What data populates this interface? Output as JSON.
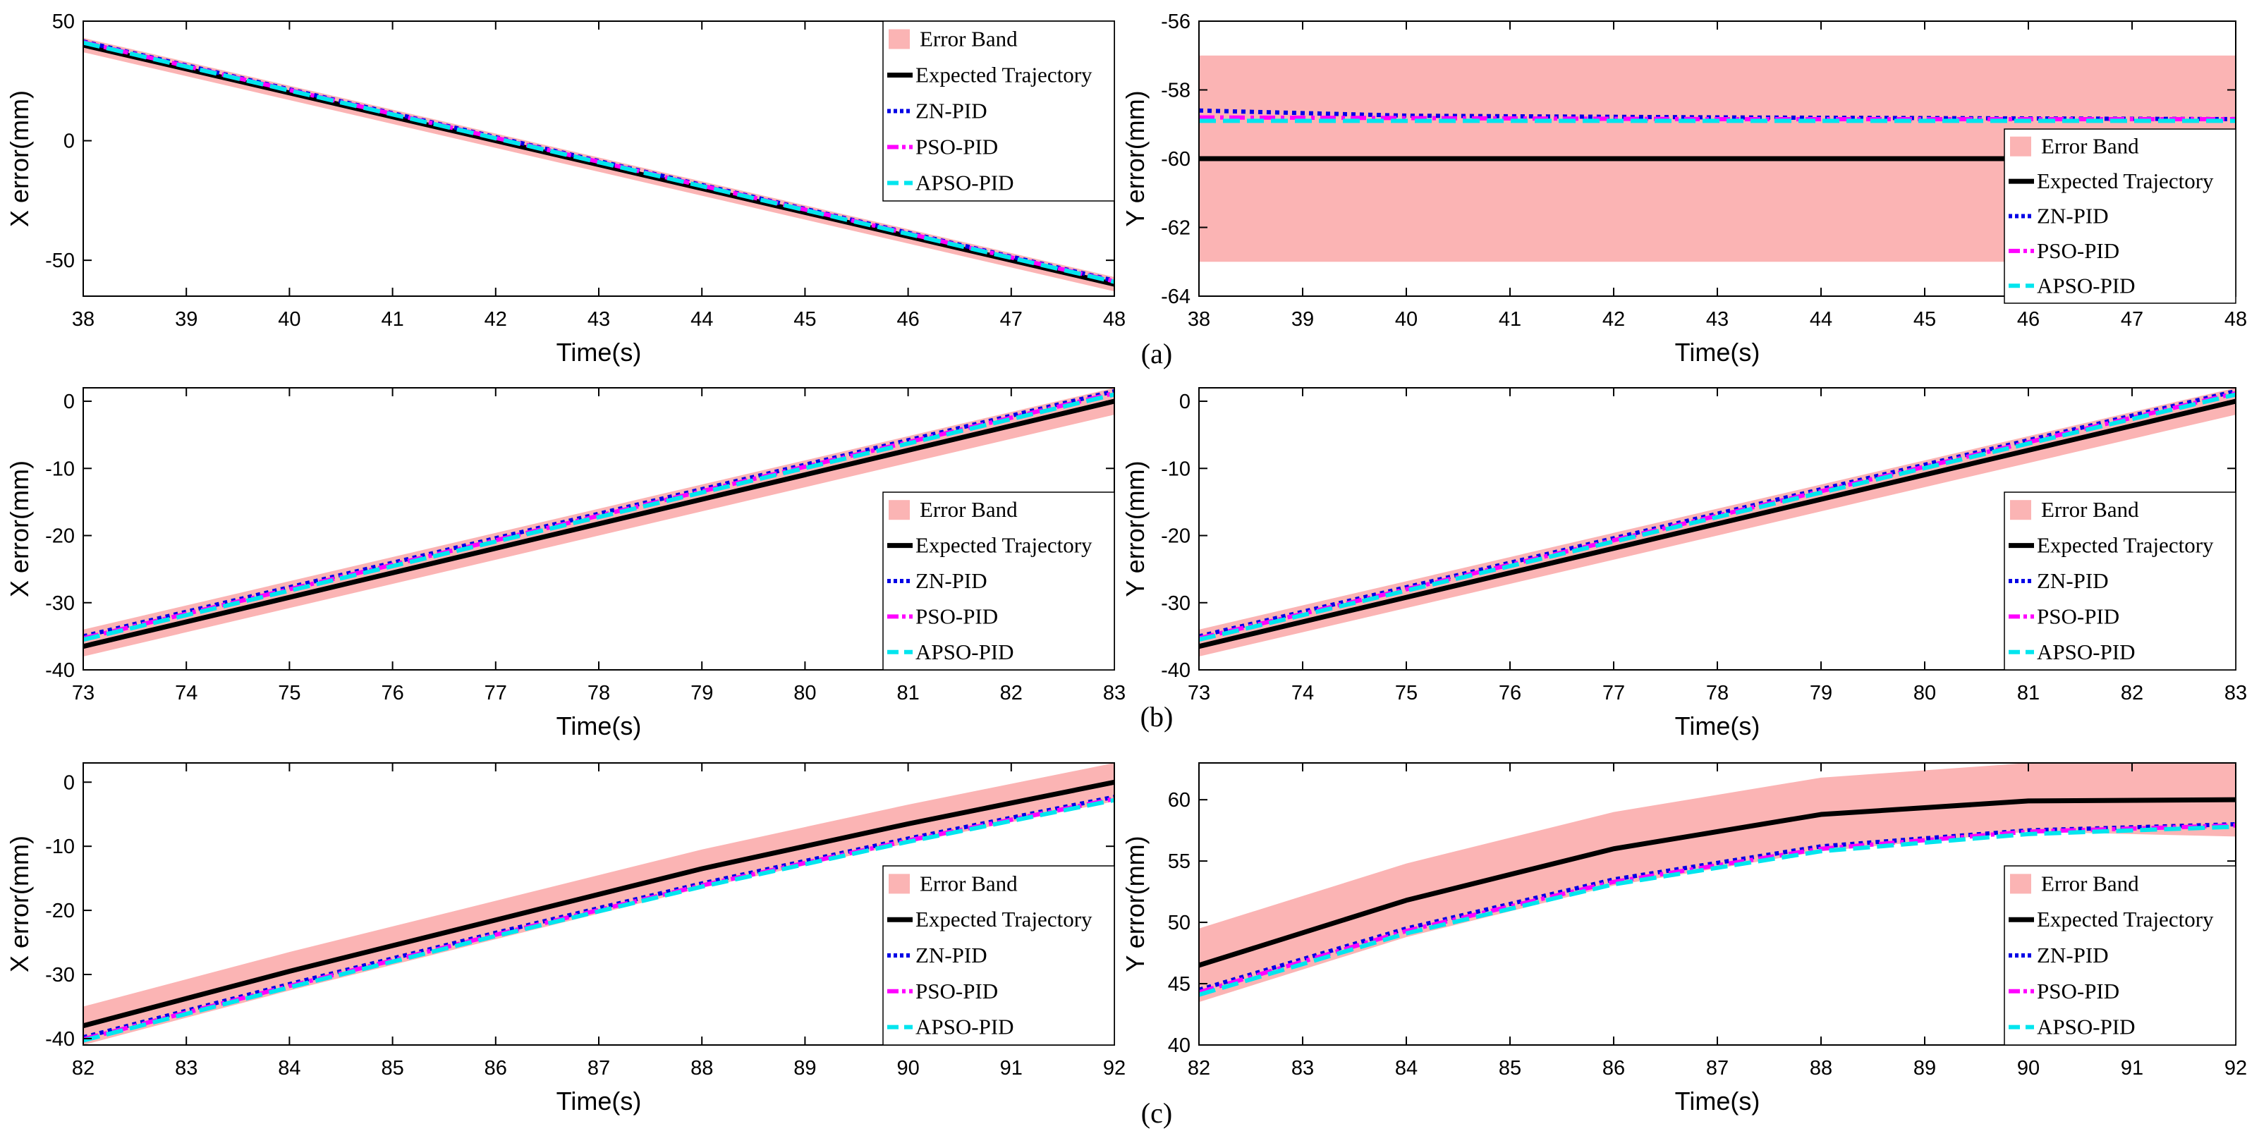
{
  "figure_labels": [
    "(a)",
    "(b)",
    "(c)"
  ],
  "legend_entries": [
    "Error Band",
    "Expected Trajectory",
    "ZN-PID",
    "PSO-PID",
    "APSO-PID"
  ],
  "colors": {
    "band": "#fbb4b4",
    "expected": "#000000",
    "zn": "#0000e6",
    "pso": "#ff00ff",
    "apso": "#00e5ee"
  },
  "chart_data": [
    {
      "id": "a-x",
      "type": "line",
      "panel": "(a)",
      "xlabel": "Time(s)",
      "ylabel": "X error(mm)",
      "xlim": [
        38,
        48
      ],
      "ylim": [
        -65,
        50
      ],
      "xticks": [
        38,
        39,
        40,
        41,
        42,
        43,
        44,
        45,
        46,
        47,
        48
      ],
      "yticks": [
        -50,
        0,
        50
      ],
      "band": {
        "x": [
          38,
          48
        ],
        "lower": [
          37,
          -63
        ],
        "upper": [
          43,
          -57
        ]
      },
      "series": [
        {
          "name": "Expected Trajectory",
          "x": [
            38,
            48
          ],
          "y": [
            40,
            -60
          ]
        },
        {
          "name": "ZN-PID",
          "x": [
            38,
            48
          ],
          "y": [
            41.5,
            -58.5
          ]
        },
        {
          "name": "PSO-PID",
          "x": [
            38,
            48
          ],
          "y": [
            41.2,
            -58.8
          ]
        },
        {
          "name": "APSO-PID",
          "x": [
            38,
            48
          ],
          "y": [
            41,
            -59
          ]
        }
      ],
      "legend_position": "top-right"
    },
    {
      "id": "a-y",
      "type": "line",
      "panel": "(a)",
      "xlabel": "Time(s)",
      "ylabel": "Y error(mm)",
      "xlim": [
        38,
        48
      ],
      "ylim": [
        -64,
        -56
      ],
      "xticks": [
        38,
        39,
        40,
        41,
        42,
        43,
        44,
        45,
        46,
        47,
        48
      ],
      "yticks": [
        -64,
        -62,
        -60,
        -58,
        -56
      ],
      "band": {
        "x": [
          38,
          48
        ],
        "lower": [
          -63,
          -63
        ],
        "upper": [
          -57,
          -57
        ]
      },
      "series": [
        {
          "name": "Expected Trajectory",
          "x": [
            38,
            48
          ],
          "y": [
            -60,
            -60
          ]
        },
        {
          "name": "ZN-PID",
          "x": [
            38,
            40,
            43,
            48
          ],
          "y": [
            -58.6,
            -58.75,
            -58.8,
            -58.85
          ]
        },
        {
          "name": "PSO-PID",
          "x": [
            38,
            43,
            48
          ],
          "y": [
            -58.8,
            -58.85,
            -58.85
          ]
        },
        {
          "name": "APSO-PID",
          "x": [
            38,
            43,
            48
          ],
          "y": [
            -58.9,
            -58.9,
            -58.9
          ]
        }
      ],
      "legend_position": "right"
    },
    {
      "id": "b-x",
      "type": "line",
      "panel": "(b)",
      "xlabel": "Time(s)",
      "ylabel": "X error(mm)",
      "xlim": [
        73,
        83
      ],
      "ylim": [
        -40,
        2
      ],
      "xticks": [
        73,
        74,
        75,
        76,
        77,
        78,
        79,
        80,
        81,
        82,
        83
      ],
      "yticks": [
        -40,
        -30,
        -20,
        -10,
        0
      ],
      "band": {
        "x": [
          73,
          83
        ],
        "lower": [
          -38,
          -2
        ],
        "upper": [
          -34,
          2
        ]
      },
      "series": [
        {
          "name": "Expected Trajectory",
          "x": [
            73,
            83
          ],
          "y": [
            -36.5,
            0
          ]
        },
        {
          "name": "ZN-PID",
          "x": [
            73,
            83
          ],
          "y": [
            -35,
            1.5
          ]
        },
        {
          "name": "PSO-PID",
          "x": [
            73,
            83
          ],
          "y": [
            -35.3,
            1.2
          ]
        },
        {
          "name": "APSO-PID",
          "x": [
            73,
            83
          ],
          "y": [
            -35.5,
            1
          ]
        }
      ],
      "legend_position": "bottom-right"
    },
    {
      "id": "b-y",
      "type": "line",
      "panel": "(b)",
      "xlabel": "Time(s)",
      "ylabel": "Y error(mm)",
      "xlim": [
        73,
        83
      ],
      "ylim": [
        -40,
        2
      ],
      "xticks": [
        73,
        74,
        75,
        76,
        77,
        78,
        79,
        80,
        81,
        82,
        83
      ],
      "yticks": [
        -40,
        -30,
        -20,
        -10,
        0
      ],
      "band": {
        "x": [
          73,
          83
        ],
        "lower": [
          -38,
          -2
        ],
        "upper": [
          -34,
          2
        ]
      },
      "series": [
        {
          "name": "Expected Trajectory",
          "x": [
            73,
            83
          ],
          "y": [
            -36.5,
            0
          ]
        },
        {
          "name": "ZN-PID",
          "x": [
            73,
            83
          ],
          "y": [
            -35,
            1.5
          ]
        },
        {
          "name": "PSO-PID",
          "x": [
            73,
            83
          ],
          "y": [
            -35.3,
            1.2
          ]
        },
        {
          "name": "APSO-PID",
          "x": [
            73,
            83
          ],
          "y": [
            -35.5,
            1
          ]
        }
      ],
      "legend_position": "bottom-right"
    },
    {
      "id": "c-x",
      "type": "line",
      "panel": "(c)",
      "xlabel": "Time(s)",
      "ylabel": "X error(mm)",
      "xlim": [
        82,
        92
      ],
      "ylim": [
        -41,
        3
      ],
      "xticks": [
        82,
        83,
        84,
        85,
        86,
        87,
        88,
        89,
        90,
        91,
        92
      ],
      "yticks": [
        -40,
        -30,
        -20,
        -10,
        0
      ],
      "band": {
        "x": [
          82,
          84,
          86,
          88,
          90,
          92
        ],
        "lower": [
          -41,
          -32.5,
          -24.5,
          -16.5,
          -9.5,
          -3
        ],
        "upper": [
          -35,
          -26.5,
          -18.5,
          -10.5,
          -3.5,
          3
        ]
      },
      "series": [
        {
          "name": "Expected Trajectory",
          "x": [
            82,
            84,
            86,
            88,
            90,
            92
          ],
          "y": [
            -38,
            -29.5,
            -21.5,
            -13.5,
            -6.5,
            0
          ]
        },
        {
          "name": "ZN-PID",
          "x": [
            82,
            84,
            86,
            88,
            90,
            92
          ],
          "y": [
            -39.8,
            -31.5,
            -23.5,
            -15.8,
            -8.8,
            -2.3
          ]
        },
        {
          "name": "PSO-PID",
          "x": [
            82,
            84,
            86,
            88,
            90,
            92
          ],
          "y": [
            -40.1,
            -31.8,
            -23.8,
            -16.1,
            -9.1,
            -2.6
          ]
        },
        {
          "name": "APSO-PID",
          "x": [
            82,
            84,
            86,
            88,
            90,
            92
          ],
          "y": [
            -40.3,
            -32,
            -24,
            -16.3,
            -9.3,
            -2.8
          ]
        }
      ],
      "legend_position": "bottom-right"
    },
    {
      "id": "c-y",
      "type": "line",
      "panel": "(c)",
      "xlabel": "Time(s)",
      "ylabel": "Y error(mm)",
      "xlim": [
        82,
        92
      ],
      "ylim": [
        40,
        63
      ],
      "xticks": [
        82,
        83,
        84,
        85,
        86,
        87,
        88,
        89,
        90,
        91,
        92
      ],
      "yticks": [
        40,
        45,
        50,
        55,
        60
      ],
      "band": {
        "x": [
          82,
          84,
          86,
          88,
          90,
          92
        ],
        "lower": [
          43.5,
          48.8,
          53,
          55.8,
          57.4,
          57
        ],
        "upper": [
          49.5,
          54.8,
          59,
          61.8,
          63,
          63
        ]
      },
      "series": [
        {
          "name": "Expected Trajectory",
          "x": [
            82,
            84,
            86,
            88,
            90,
            92
          ],
          "y": [
            46.5,
            51.8,
            56,
            58.8,
            59.9,
            60
          ]
        },
        {
          "name": "ZN-PID",
          "x": [
            82,
            84,
            86,
            88,
            90,
            92
          ],
          "y": [
            44.5,
            49.5,
            53.5,
            56.2,
            57.5,
            58
          ]
        },
        {
          "name": "PSO-PID",
          "x": [
            82,
            84,
            86,
            88,
            90,
            92
          ],
          "y": [
            44.3,
            49.3,
            53.3,
            56,
            57.4,
            57.9
          ]
        },
        {
          "name": "APSO-PID",
          "x": [
            82,
            84,
            86,
            88,
            90,
            92
          ],
          "y": [
            44.1,
            49.1,
            53.1,
            55.8,
            57.2,
            57.8
          ]
        }
      ],
      "legend_position": "bottom-right"
    }
  ]
}
